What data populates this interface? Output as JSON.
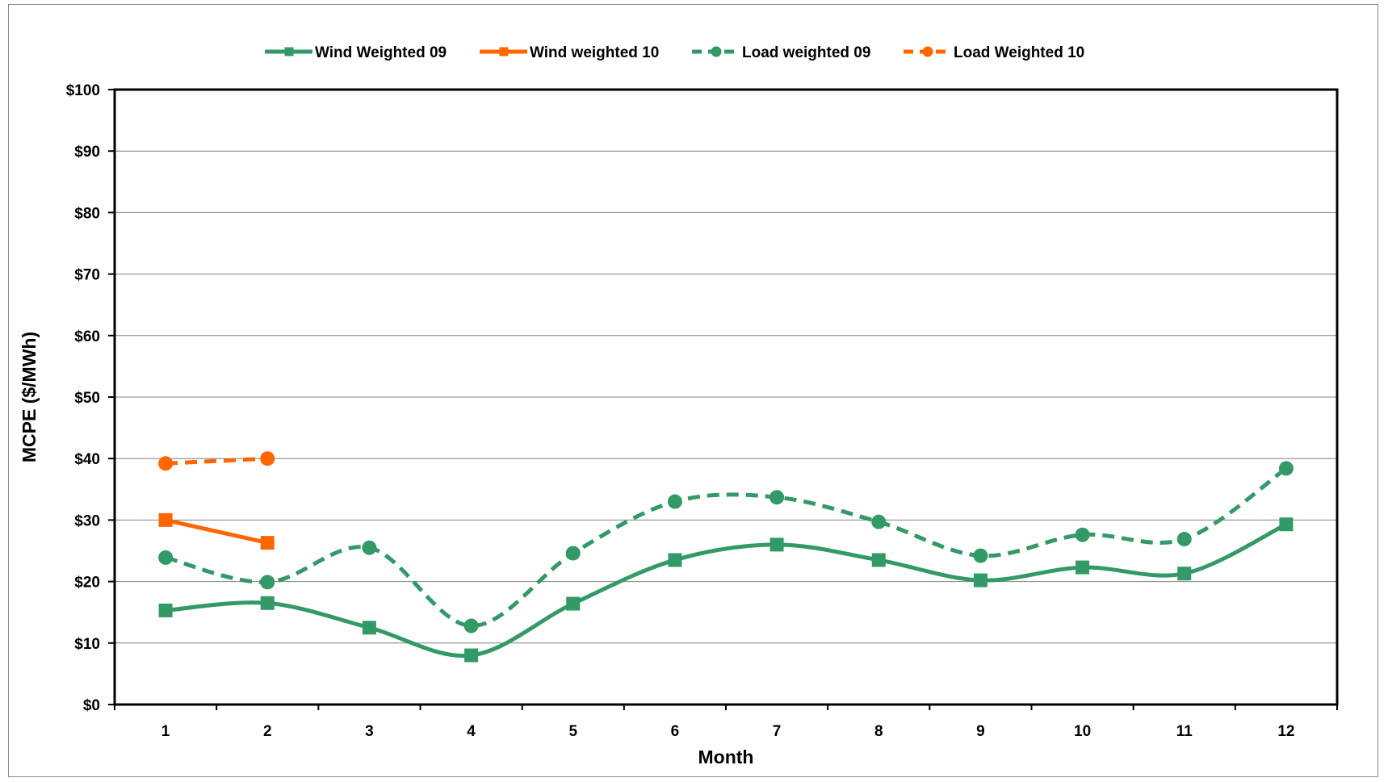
{
  "chart_data": {
    "type": "line",
    "title": "",
    "xlabel": "Month",
    "ylabel": "MCPE ($/MWh)",
    "x": [
      1,
      2,
      3,
      4,
      5,
      6,
      7,
      8,
      9,
      10,
      11,
      12
    ],
    "ylim": [
      0,
      100
    ],
    "yticks": [
      0,
      10,
      20,
      30,
      40,
      50,
      60,
      70,
      80,
      90,
      100
    ],
    "ytick_labels": [
      "$0",
      "$10",
      "$20",
      "$30",
      "$40",
      "$50",
      "$60",
      "$70",
      "$80",
      "$90",
      "$100"
    ],
    "grid": "horizontal",
    "legend_position": "top",
    "series": [
      {
        "name": "Wind Weighted 09",
        "color": "#339966",
        "dash": "solid",
        "marker": "square",
        "x": [
          1,
          2,
          3,
          4,
          5,
          6,
          7,
          8,
          9,
          10,
          11,
          12
        ],
        "values": [
          15.3,
          16.5,
          12.5,
          8.0,
          16.4,
          23.5,
          26.0,
          23.5,
          20.2,
          22.3,
          21.3,
          29.3
        ]
      },
      {
        "name": "Wind weighted 10",
        "color": "#FF6600",
        "dash": "solid",
        "marker": "square",
        "x": [
          1,
          2
        ],
        "values": [
          30.0,
          26.3
        ]
      },
      {
        "name": "Load weighted 09",
        "color": "#339966",
        "dash": "dashed",
        "marker": "circle",
        "x": [
          1,
          2,
          3,
          4,
          5,
          6,
          7,
          8,
          9,
          10,
          11,
          12
        ],
        "values": [
          23.9,
          19.9,
          25.5,
          12.8,
          24.6,
          33.0,
          33.7,
          29.7,
          24.2,
          27.6,
          26.9,
          38.4
        ]
      },
      {
        "name": "Load Weighted 10",
        "color": "#FF6600",
        "dash": "dashed",
        "marker": "circle",
        "x": [
          1,
          2
        ],
        "values": [
          39.2,
          40.0
        ]
      }
    ]
  }
}
